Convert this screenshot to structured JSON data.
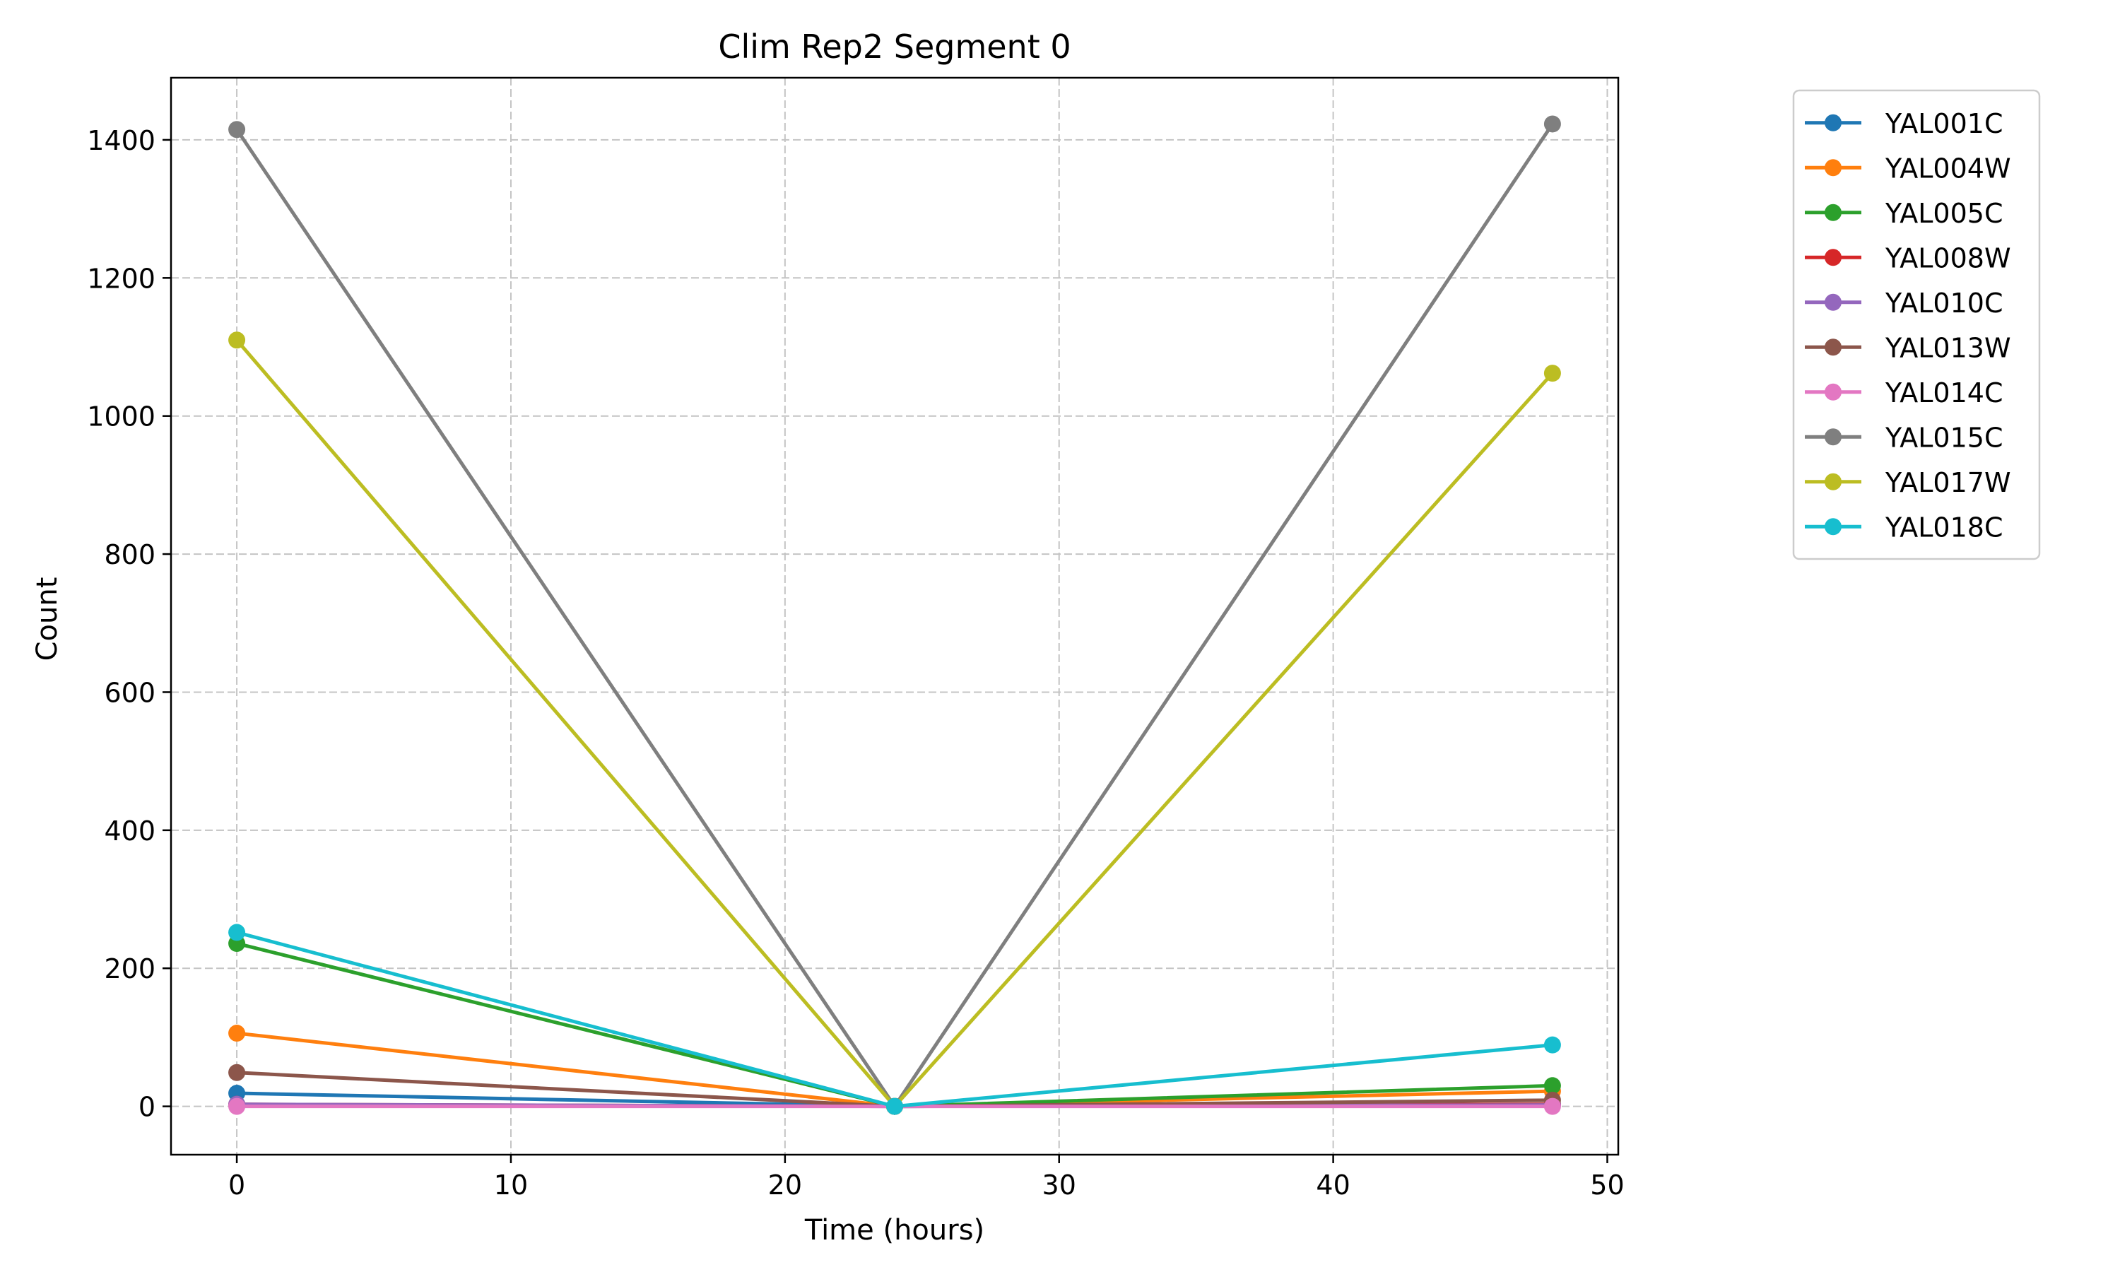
{
  "chart_data": {
    "type": "line",
    "title": "Clim Rep2 Segment 0",
    "xlabel": "Time (hours)",
    "ylabel": "Count",
    "xlim": [
      -2.4,
      50.4
    ],
    "ylim": [
      -70,
      1490
    ],
    "xticks": [
      0,
      10,
      20,
      30,
      40,
      50
    ],
    "yticks": [
      0,
      200,
      400,
      600,
      800,
      1000,
      1200,
      1400
    ],
    "grid": true,
    "legend_position": "outside-right",
    "x": [
      0,
      24,
      48
    ],
    "series": [
      {
        "name": "YAL001C",
        "color": "#1f77b4",
        "values": [
          19,
          0,
          3
        ]
      },
      {
        "name": "YAL004W",
        "color": "#ff7f0e",
        "values": [
          106,
          0,
          22
        ]
      },
      {
        "name": "YAL005C",
        "color": "#2ca02c",
        "values": [
          236,
          0,
          30
        ]
      },
      {
        "name": "YAL008W",
        "color": "#d62728",
        "values": [
          3,
          0,
          3
        ]
      },
      {
        "name": "YAL010C",
        "color": "#9467bd",
        "values": [
          3,
          0,
          2
        ]
      },
      {
        "name": "YAL013W",
        "color": "#8c564b",
        "values": [
          49,
          0,
          9
        ]
      },
      {
        "name": "YAL014C",
        "color": "#e377c2",
        "values": [
          0,
          0,
          0
        ]
      },
      {
        "name": "YAL015C",
        "color": "#7f7f7f",
        "values": [
          1415,
          0,
          1423
        ]
      },
      {
        "name": "YAL017W",
        "color": "#bcbd22",
        "values": [
          1110,
          0,
          1062
        ]
      },
      {
        "name": "YAL018C",
        "color": "#17becf",
        "values": [
          252,
          0,
          89
        ]
      }
    ]
  }
}
